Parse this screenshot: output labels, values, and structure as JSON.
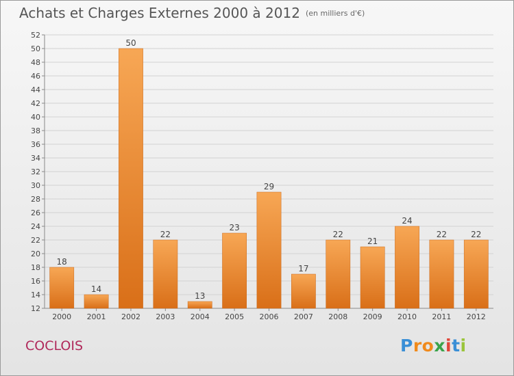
{
  "title": "Achats et Charges Externes 2000 à 2012",
  "subtitle": "(en milliers d'€)",
  "city": "COCLOIS",
  "logo": {
    "letters": [
      "P",
      "r",
      "o",
      "x",
      "i",
      "t",
      "i"
    ],
    "colors": [
      "#3a8fd6",
      "#f08a1c",
      "#f08a1c",
      "#3aa34a",
      "#e0463a",
      "#3a8fd6",
      "#9ac43a"
    ]
  },
  "chart_data": {
    "type": "bar",
    "categories": [
      "2000",
      "2001",
      "2002",
      "2003",
      "2004",
      "2005",
      "2006",
      "2007",
      "2008",
      "2009",
      "2010",
      "2011",
      "2012"
    ],
    "values": [
      18,
      14,
      50,
      22,
      13,
      23,
      29,
      17,
      22,
      21,
      24,
      22,
      22
    ],
    "ylim": [
      12,
      52
    ],
    "yticks": [
      12,
      14,
      16,
      18,
      20,
      22,
      24,
      26,
      28,
      30,
      32,
      34,
      36,
      38,
      40,
      42,
      44,
      46,
      48,
      50,
      52
    ],
    "grid": true,
    "bar_color": "#e8822c"
  }
}
